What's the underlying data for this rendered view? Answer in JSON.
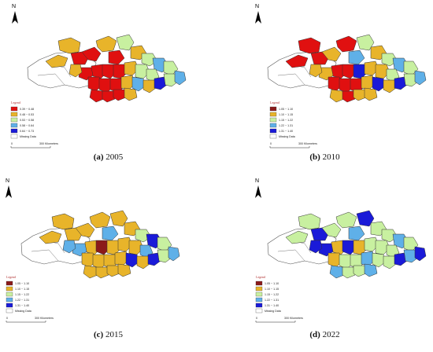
{
  "legend_title": "Legend",
  "missing_label": "Missing Data",
  "scale_zero": "0",
  "scale_unit": "300 Kilometers",
  "north_label": "N",
  "colors": {
    "class1": "#8b1a1a",
    "class2": "#e8b42a",
    "class3": "#c8f0a0",
    "class4": "#5fb0e8",
    "class5": "#1a1ad8",
    "missing": "#ffffff",
    "red_2005": "#e01010"
  },
  "panels": [
    {
      "id": "a",
      "letter": "(a)",
      "year": "2005",
      "legend": [
        {
          "label": "0.39 ~ 0.48",
          "color": "#e01010"
        },
        {
          "label": "0.48 ~ 0.53",
          "color": "#e8b42a"
        },
        {
          "label": "0.53 ~ 0.58",
          "color": "#c8f0a0"
        },
        {
          "label": "0.58 ~ 0.64",
          "color": "#5fb0e8"
        },
        {
          "label": "0.64 ~ 0.73",
          "color": "#1a1ad8"
        }
      ],
      "dominant": "red"
    },
    {
      "id": "b",
      "letter": "(b)",
      "year": "2010",
      "legend": [
        {
          "label": "1.05 ~ 1.10",
          "color": "#8b1a1a"
        },
        {
          "label": "1.10 ~ 1.15",
          "color": "#e8b42a"
        },
        {
          "label": "1.15 ~ 1.22",
          "color": "#c8f0a0"
        },
        {
          "label": "1.22 ~ 1.31",
          "color": "#5fb0e8"
        },
        {
          "label": "1.31 ~ 1.40",
          "color": "#1a1ad8"
        }
      ],
      "dominant": "red"
    },
    {
      "id": "c",
      "letter": "(c)",
      "year": "2015",
      "legend": [
        {
          "label": "1.05 ~ 1.10",
          "color": "#8b1a1a"
        },
        {
          "label": "1.10 ~ 1.15",
          "color": "#e8b42a"
        },
        {
          "label": "1.15 ~ 1.22",
          "color": "#c8f0a0"
        },
        {
          "label": "1.22 ~ 1.31",
          "color": "#5fb0e8"
        },
        {
          "label": "1.31 ~ 1.40",
          "color": "#1a1ad8"
        }
      ],
      "dominant": "orange"
    },
    {
      "id": "d",
      "letter": "(d)",
      "year": "2022",
      "legend": [
        {
          "label": "1.05 ~ 1.10",
          "color": "#8b1a1a"
        },
        {
          "label": "1.10 ~ 1.15",
          "color": "#e8b42a"
        },
        {
          "label": "1.15 ~ 1.22",
          "color": "#c8f0a0"
        },
        {
          "label": "1.22 ~ 1.31",
          "color": "#5fb0e8"
        },
        {
          "label": "1.31 ~ 1.40",
          "color": "#1a1ad8"
        }
      ],
      "dominant": "green"
    }
  ]
}
